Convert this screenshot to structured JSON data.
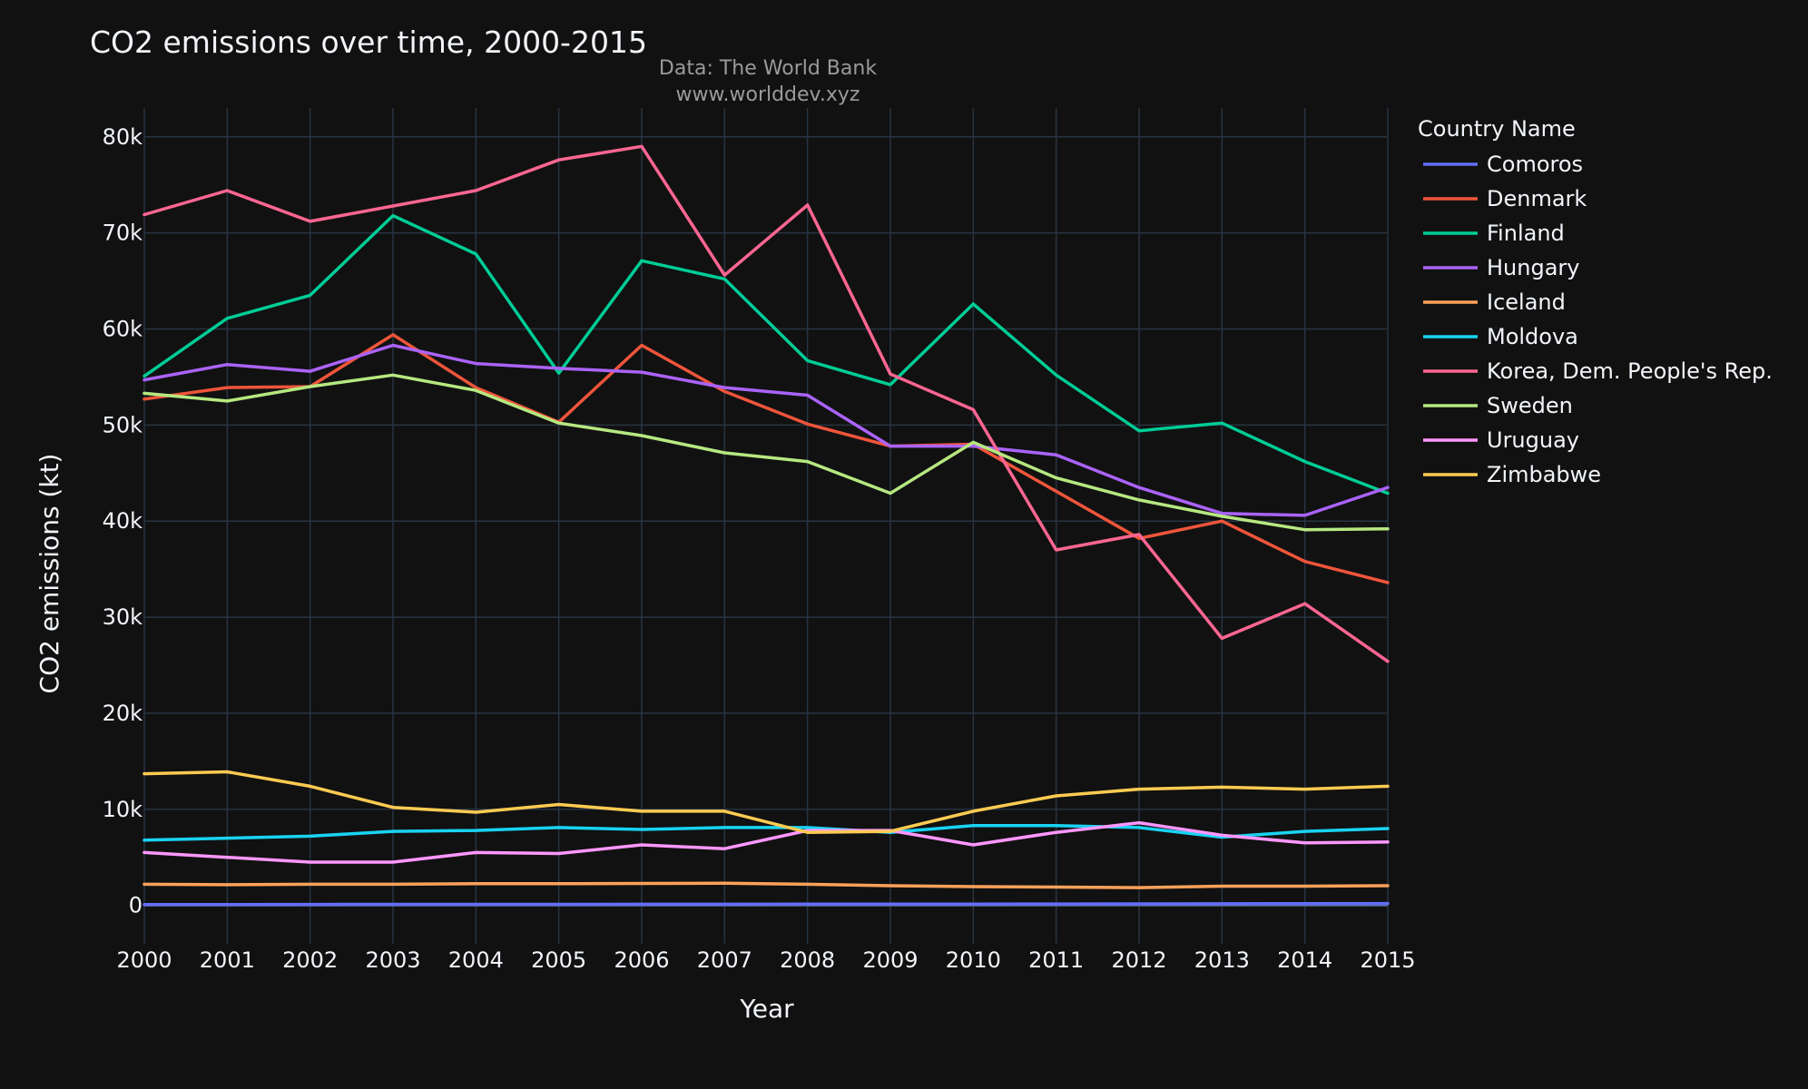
{
  "chart_data": {
    "type": "line",
    "title": "CO2 emissions over time, 2000-2015",
    "subtitle_lines": [
      "Data: The World Bank",
      "www.worlddev.xyz"
    ],
    "xlabel": "Year",
    "ylabel": "CO2 emissions (kt)",
    "xlim": [
      2000,
      2015
    ],
    "ylim": [
      -4000,
      83000
    ],
    "x_ticks": [
      2000,
      2001,
      2002,
      2003,
      2004,
      2005,
      2006,
      2007,
      2008,
      2009,
      2010,
      2011,
      2012,
      2013,
      2014,
      2015
    ],
    "x_tick_labels": [
      "2000",
      "2001",
      "2002",
      "2003",
      "2004",
      "2005",
      "2006",
      "2007",
      "2008",
      "2009",
      "2010",
      "2011",
      "2012",
      "2013",
      "2014",
      "2015"
    ],
    "y_ticks": [
      0,
      10000,
      20000,
      30000,
      40000,
      50000,
      60000,
      70000,
      80000
    ],
    "y_tick_labels": [
      "0",
      "10k",
      "20k",
      "30k",
      "40k",
      "50k",
      "60k",
      "70k",
      "80k"
    ],
    "grid": true,
    "legend_title": "Country Name",
    "legend_position": "right",
    "x": [
      2000,
      2001,
      2002,
      2003,
      2004,
      2005,
      2006,
      2007,
      2008,
      2009,
      2010,
      2011,
      2012,
      2013,
      2014,
      2015
    ],
    "series": [
      {
        "name": "Comoros",
        "color": "#636efa",
        "values": [
          90,
          90,
          100,
          110,
          110,
          110,
          120,
          120,
          130,
          130,
          140,
          150,
          160,
          170,
          180,
          190
        ]
      },
      {
        "name": "Denmark",
        "color": "#EF553B",
        "values": [
          52700,
          53900,
          54000,
          59400,
          53900,
          50300,
          58300,
          53500,
          50100,
          47800,
          48000,
          43100,
          38200,
          40000,
          35800,
          33600
        ]
      },
      {
        "name": "Finland",
        "color": "#00cc96",
        "values": [
          55100,
          61100,
          63500,
          71800,
          67800,
          55400,
          67100,
          65200,
          56700,
          54200,
          62600,
          55200,
          49400,
          50200,
          46200,
          42900
        ]
      },
      {
        "name": "Hungary",
        "color": "#ab63fa",
        "values": [
          54700,
          56300,
          55600,
          58300,
          56400,
          55900,
          55500,
          53900,
          53100,
          47800,
          47800,
          46900,
          43500,
          40800,
          40600,
          43500
        ]
      },
      {
        "name": "Iceland",
        "color": "#FFA15A",
        "values": [
          2200,
          2150,
          2200,
          2200,
          2250,
          2250,
          2280,
          2300,
          2200,
          2050,
          1950,
          1900,
          1850,
          2000,
          2000,
          2050
        ]
      },
      {
        "name": "Moldova",
        "color": "#19d3f3",
        "values": [
          6800,
          7000,
          7200,
          7700,
          7800,
          8100,
          7900,
          8100,
          8100,
          7600,
          8300,
          8300,
          8100,
          7100,
          7700,
          8000
        ]
      },
      {
        "name": "Korea, Dem. People's Rep.",
        "color": "#FF6692",
        "values": [
          71900,
          74400,
          71200,
          72800,
          74400,
          77600,
          79000,
          65600,
          72900,
          55300,
          51600,
          37000,
          38600,
          27800,
          31400,
          25400
        ]
      },
      {
        "name": "Sweden",
        "color": "#B6E880",
        "values": [
          53300,
          52500,
          54000,
          55200,
          53600,
          50200,
          48900,
          47100,
          46200,
          42900,
          48200,
          44500,
          42200,
          40500,
          39100,
          39200
        ]
      },
      {
        "name": "Uruguay",
        "color": "#FF97FF",
        "values": [
          5500,
          5000,
          4500,
          4500,
          5500,
          5400,
          6300,
          5900,
          7800,
          7800,
          6300,
          7600,
          8600,
          7300,
          6500,
          6600
        ]
      },
      {
        "name": "Zimbabwe",
        "color": "#FECB52",
        "values": [
          13700,
          13900,
          12400,
          10200,
          9700,
          10500,
          9800,
          9800,
          7600,
          7700,
          9800,
          11400,
          12100,
          12300,
          12100,
          12400
        ]
      }
    ]
  }
}
